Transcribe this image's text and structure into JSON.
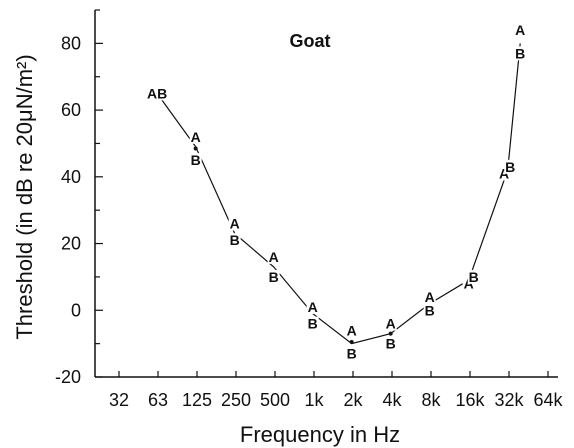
{
  "chart_data": {
    "type": "line",
    "title": "Goat",
    "xlabel": "Frequency in Hz",
    "ylabel": "Threshold (in dB re 20μN/m²)",
    "x_scale": "log",
    "x_ticks": [
      "32",
      "63",
      "125",
      "250",
      "500",
      "1k",
      "2k",
      "4k",
      "8k",
      "16k",
      "32k",
      "64k"
    ],
    "y_ticks": [
      -20,
      0,
      20,
      40,
      60,
      80
    ],
    "ylim": [
      -20,
      90
    ],
    "grid": false,
    "series": [
      {
        "x": [
          63,
          125,
          250,
          500,
          1000,
          2000,
          4000,
          8000,
          16000,
          32000,
          40000
        ],
        "y": [
          65,
          49,
          23,
          13,
          -1,
          -10,
          -7,
          2,
          9,
          42,
          80
        ]
      }
    ],
    "point_labels": [
      {
        "x": 63,
        "y": 65,
        "label": "AB"
      },
      {
        "x": 125,
        "y": 52,
        "label": "A"
      },
      {
        "x": 125,
        "y": 45,
        "label": "B"
      },
      {
        "x": 250,
        "y": 26,
        "label": "A"
      },
      {
        "x": 250,
        "y": 21,
        "label": "B"
      },
      {
        "x": 500,
        "y": 16,
        "label": "A"
      },
      {
        "x": 500,
        "y": 10,
        "label": "B"
      },
      {
        "x": 1000,
        "y": 1,
        "label": "A"
      },
      {
        "x": 1000,
        "y": -4,
        "label": "B"
      },
      {
        "x": 2000,
        "y": -6,
        "label": "A"
      },
      {
        "x": 2000,
        "y": -13,
        "label": "B"
      },
      {
        "x": 4000,
        "y": -4,
        "label": "A"
      },
      {
        "x": 4000,
        "y": -10,
        "label": "B"
      },
      {
        "x": 8000,
        "y": 4,
        "label": "A"
      },
      {
        "x": 8000,
        "y": 0,
        "label": "B"
      },
      {
        "x": 16000,
        "y": 8,
        "label": "A"
      },
      {
        "x": 17500,
        "y": 10,
        "label": "B"
      },
      {
        "x": 30000,
        "y": 41,
        "label": "A"
      },
      {
        "x": 33500,
        "y": 43,
        "label": "B"
      },
      {
        "x": 40000,
        "y": 84,
        "label": "A"
      },
      {
        "x": 40000,
        "y": 77,
        "label": "B"
      }
    ],
    "dot_markers": [
      {
        "x": 125,
        "y": 48.5
      },
      {
        "x": 2000,
        "y": -9.5
      },
      {
        "x": 4000,
        "y": -7
      }
    ]
  }
}
